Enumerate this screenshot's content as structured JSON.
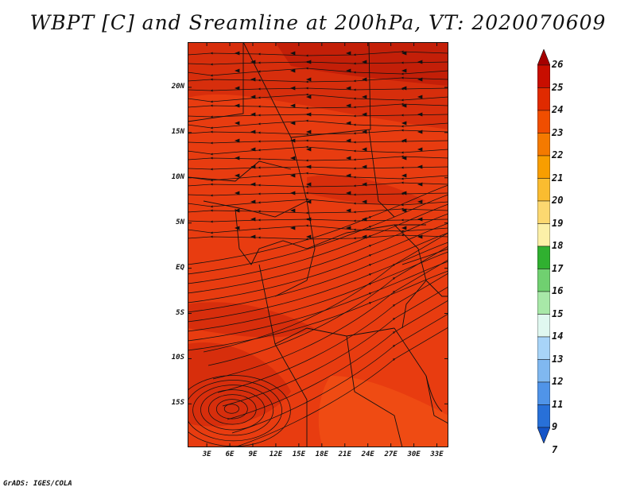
{
  "title": "WBPT [C] and Sreamline at 200hPa, VT: 2020070609",
  "credit": "GrADS: IGES/COLA",
  "lat_ticks": [
    {
      "label": "20N",
      "value": 20
    },
    {
      "label": "15N",
      "value": 15
    },
    {
      "label": "10N",
      "value": 10
    },
    {
      "label": "5N",
      "value": 5
    },
    {
      "label": "EQ",
      "value": 0
    },
    {
      "label": "5S",
      "value": -5
    },
    {
      "label": "10S",
      "value": -10
    },
    {
      "label": "15S",
      "value": -15
    }
  ],
  "lon_ticks": [
    {
      "label": "3E",
      "value": 3
    },
    {
      "label": "6E",
      "value": 6
    },
    {
      "label": "9E",
      "value": 9
    },
    {
      "label": "12E",
      "value": 12
    },
    {
      "label": "15E",
      "value": 15
    },
    {
      "label": "18E",
      "value": 18
    },
    {
      "label": "21E",
      "value": 21
    },
    {
      "label": "24E",
      "value": 24
    },
    {
      "label": "27E",
      "value": 27
    },
    {
      "label": "30E",
      "value": 30
    },
    {
      "label": "33E",
      "value": 33
    }
  ],
  "map_extent": {
    "lon_min": 0.5,
    "lon_max": 34.5,
    "lat_min": -19.8,
    "lat_max": 25
  },
  "field_colors": {
    "dominant": "#e83c10",
    "darker": "#d42c0c",
    "darkest": "#c01c08",
    "lighter": "#f04e14"
  },
  "colorbar": {
    "labels": [
      "26",
      "25",
      "24",
      "23",
      "22",
      "21",
      "20",
      "19",
      "18",
      "17",
      "16",
      "15",
      "14",
      "13",
      "12",
      "11",
      "9",
      "7"
    ],
    "colors": [
      "#a50000",
      "#c80e00",
      "#e02a00",
      "#f04e00",
      "#f47a00",
      "#f89e00",
      "#fabc30",
      "#fcd870",
      "#fcf0a8",
      "#30b030",
      "#70d070",
      "#a8e8a8",
      "#e0f8f0",
      "#a8d4f8",
      "#80b8f0",
      "#5094e8",
      "#2870d8",
      "#1454c8"
    ]
  }
}
